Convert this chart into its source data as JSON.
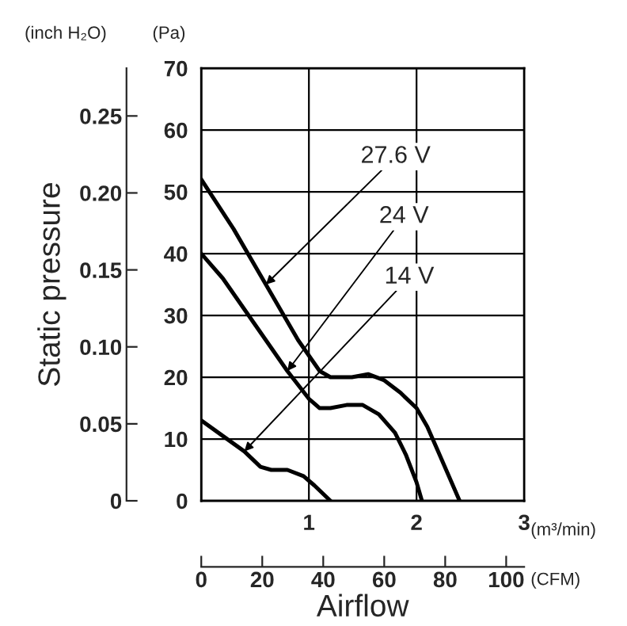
{
  "chart_data": {
    "type": "line",
    "xlabel": "Airflow",
    "y2label": "Static pressure",
    "xlim": [
      0,
      3
    ],
    "xticks": [
      {
        "value": 0,
        "label": null
      },
      1,
      2,
      3
    ],
    "ylim": [
      0,
      70
    ],
    "yticks": [
      0,
      10,
      20,
      30,
      40,
      50,
      60,
      70
    ],
    "y2lim": [
      0,
      0.281
    ],
    "y2ticks": [
      0,
      0.05,
      {
        "value": 0.1,
        "label": "0.10"
      },
      0.15,
      {
        "value": 0.2,
        "label": "0.20"
      },
      0.25
    ],
    "x2lim": [
      0,
      105.9
    ],
    "x2ticks": [
      0,
      20,
      40,
      60,
      80,
      100
    ],
    "grid": true,
    "color": "#000000",
    "series": [
      {
        "x": [
          0,
          0.3,
          0.6,
          0.9,
          1.1,
          1.2,
          1.4,
          1.55,
          1.7,
          1.85,
          2.0,
          2.1,
          2.2,
          2.3,
          2.4
        ],
        "values": [
          52,
          44,
          35,
          26,
          21,
          20,
          20,
          20.5,
          19.5,
          17.5,
          15,
          12,
          8,
          4,
          0
        ]
      },
      {
        "x": [
          0,
          0.2,
          0.4,
          0.6,
          0.8,
          1.0,
          1.1,
          1.2,
          1.35,
          1.5,
          1.65,
          1.8,
          1.9,
          2.0,
          2.05
        ],
        "values": [
          40,
          36,
          31,
          26,
          21,
          16.5,
          15,
          15,
          15.5,
          15.5,
          14,
          11,
          7.5,
          3,
          0
        ]
      },
      {
        "x": [
          0,
          0.2,
          0.4,
          0.55,
          0.65,
          0.8,
          0.95,
          1.05,
          1.2
        ],
        "values": [
          13,
          10.5,
          8,
          5.5,
          5,
          5,
          4,
          2.5,
          0
        ]
      }
    ],
    "annotations": [
      {
        "text": "27.6 V",
        "x": 0.6,
        "y": 35
      },
      {
        "text": "24 V",
        "x": 0.8,
        "y": 21
      },
      {
        "text": "14 V",
        "x": 0.4,
        "y": 8
      },
      "(m³/min)",
      "(CFM)",
      "(Pa)",
      "(inch H₂O)"
    ]
  }
}
